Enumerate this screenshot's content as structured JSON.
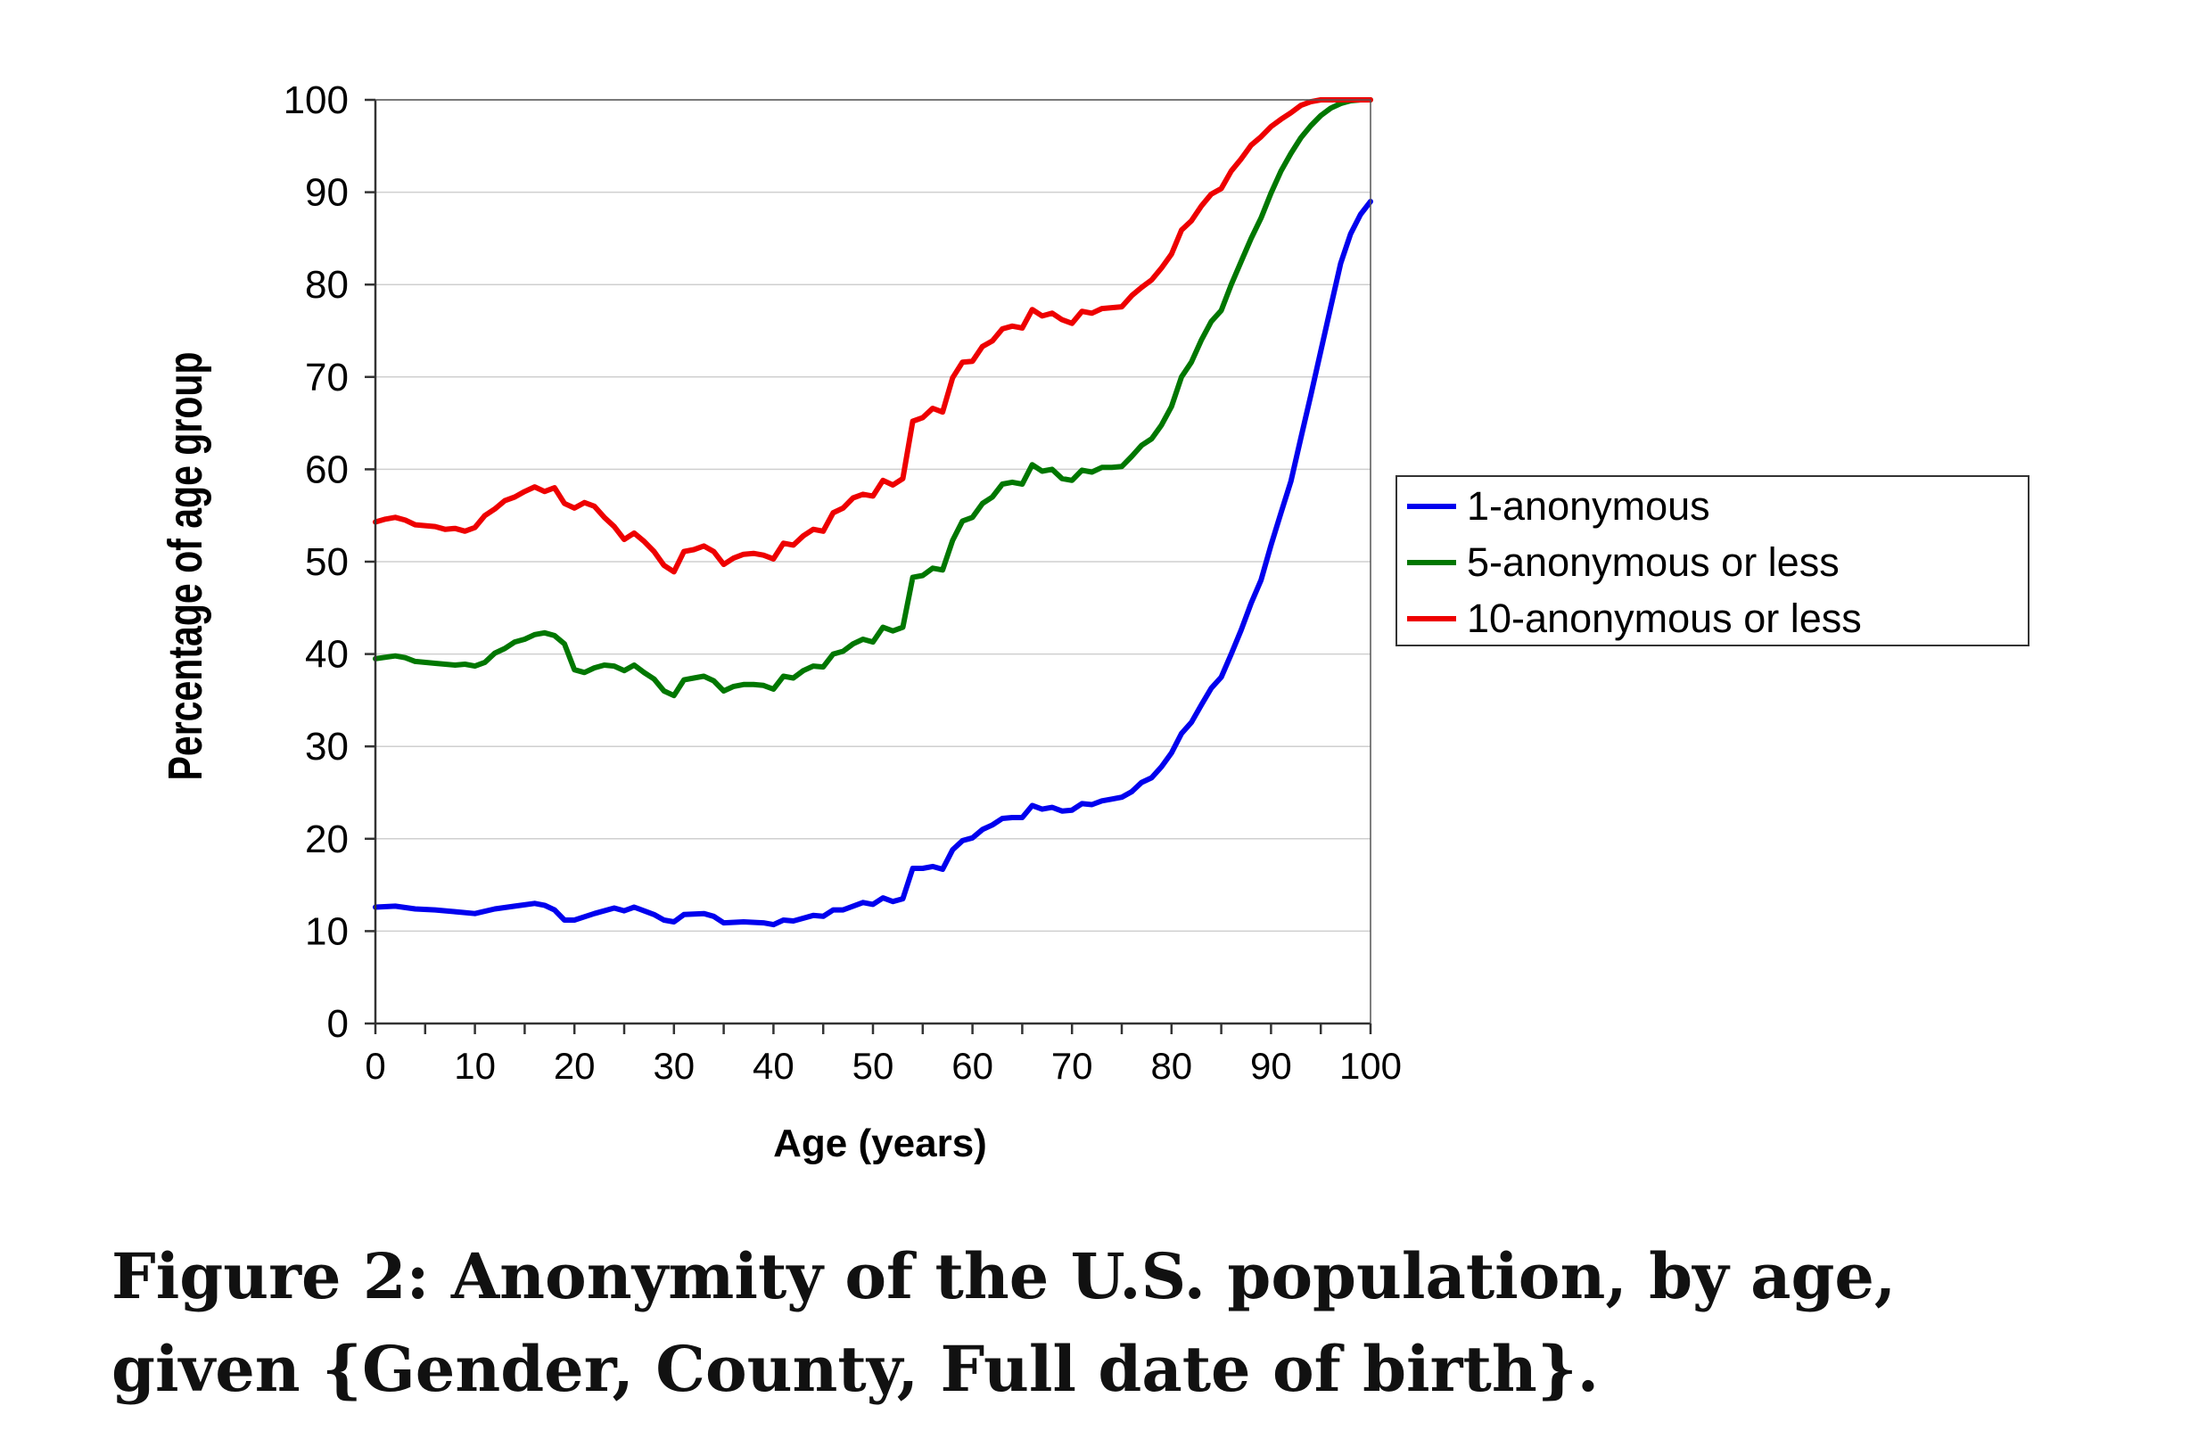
{
  "chart_data": {
    "type": "line",
    "xlabel": "Age (years)",
    "ylabel": "Percentage of age group",
    "xlim": [
      0,
      100
    ],
    "ylim": [
      0,
      100
    ],
    "x_ticks": [
      0,
      10,
      20,
      30,
      40,
      50,
      60,
      70,
      80,
      90,
      100
    ],
    "y_ticks": [
      0,
      10,
      20,
      30,
      40,
      50,
      60,
      70,
      80,
      90,
      100
    ],
    "grid": "horizontal",
    "legend_position": "right",
    "series": [
      {
        "name": "1-anonymous",
        "color": "#0000ee",
        "points": [
          [
            0,
            12.6
          ],
          [
            2,
            12.7
          ],
          [
            4,
            12.4
          ],
          [
            6,
            12.3
          ],
          [
            8,
            12.1
          ],
          [
            10,
            11.9
          ],
          [
            12,
            12.4
          ],
          [
            14,
            12.7
          ],
          [
            16,
            13.0
          ],
          [
            17,
            12.8
          ],
          [
            18,
            12.3
          ],
          [
            19,
            11.2
          ],
          [
            20,
            11.2
          ],
          [
            22,
            11.9
          ],
          [
            24,
            12.5
          ],
          [
            25,
            12.2
          ],
          [
            26,
            12.6
          ],
          [
            28,
            11.8
          ],
          [
            29,
            11.2
          ],
          [
            30,
            11.0
          ],
          [
            31,
            11.8
          ],
          [
            33,
            11.9
          ],
          [
            34,
            11.6
          ],
          [
            35,
            10.9
          ],
          [
            37,
            11.0
          ],
          [
            39,
            10.9
          ],
          [
            40,
            10.7
          ],
          [
            41,
            11.2
          ],
          [
            42,
            11.1
          ],
          [
            44,
            11.7
          ],
          [
            45,
            11.6
          ],
          [
            46,
            12.3
          ],
          [
            47,
            12.3
          ],
          [
            49,
            13.1
          ],
          [
            50,
            12.9
          ],
          [
            51,
            13.6
          ],
          [
            52,
            13.2
          ],
          [
            53,
            13.5
          ],
          [
            54,
            16.8
          ],
          [
            55,
            16.8
          ],
          [
            56,
            17.0
          ],
          [
            57,
            16.7
          ],
          [
            58,
            18.8
          ],
          [
            59,
            19.8
          ],
          [
            60,
            20.1
          ],
          [
            61,
            21.0
          ],
          [
            62,
            21.5
          ],
          [
            63,
            22.2
          ],
          [
            64,
            22.3
          ],
          [
            65,
            22.3
          ],
          [
            66,
            23.6
          ],
          [
            67,
            23.2
          ],
          [
            68,
            23.4
          ],
          [
            69,
            23.0
          ],
          [
            70,
            23.1
          ],
          [
            71,
            23.8
          ],
          [
            72,
            23.7
          ],
          [
            73,
            24.1
          ],
          [
            74,
            24.3
          ],
          [
            75,
            24.5
          ],
          [
            76,
            25.1
          ],
          [
            77,
            26.1
          ],
          [
            78,
            26.6
          ],
          [
            79,
            27.8
          ],
          [
            80,
            29.3
          ],
          [
            81,
            31.4
          ],
          [
            82,
            32.6
          ],
          [
            83,
            34.5
          ],
          [
            84,
            36.3
          ],
          [
            85,
            37.5
          ],
          [
            86,
            40.0
          ],
          [
            87,
            42.6
          ],
          [
            88,
            45.5
          ],
          [
            89,
            48.0
          ],
          [
            90,
            51.8
          ],
          [
            91,
            55.3
          ],
          [
            92,
            58.7
          ],
          [
            93,
            63.4
          ],
          [
            94,
            68.0
          ],
          [
            95,
            72.8
          ],
          [
            96,
            77.6
          ],
          [
            97,
            82.3
          ],
          [
            98,
            85.5
          ],
          [
            99,
            87.6
          ],
          [
            100,
            89.0
          ]
        ]
      },
      {
        "name": "5-anonymous or less",
        "color": "#007700",
        "points": [
          [
            0,
            39.5
          ],
          [
            2,
            39.8
          ],
          [
            3,
            39.6
          ],
          [
            4,
            39.2
          ],
          [
            6,
            39.0
          ],
          [
            8,
            38.8
          ],
          [
            9,
            38.9
          ],
          [
            10,
            38.7
          ],
          [
            11,
            39.1
          ],
          [
            12,
            40.1
          ],
          [
            13,
            40.6
          ],
          [
            14,
            41.3
          ],
          [
            15,
            41.6
          ],
          [
            16,
            42.1
          ],
          [
            17,
            42.3
          ],
          [
            18,
            42.0
          ],
          [
            19,
            41.1
          ],
          [
            20,
            38.3
          ],
          [
            21,
            38.0
          ],
          [
            22,
            38.5
          ],
          [
            23,
            38.8
          ],
          [
            24,
            38.7
          ],
          [
            25,
            38.2
          ],
          [
            26,
            38.8
          ],
          [
            27,
            38.0
          ],
          [
            28,
            37.3
          ],
          [
            29,
            36.0
          ],
          [
            30,
            35.5
          ],
          [
            31,
            37.2
          ],
          [
            32,
            37.4
          ],
          [
            33,
            37.6
          ],
          [
            34,
            37.1
          ],
          [
            35,
            36.0
          ],
          [
            36,
            36.5
          ],
          [
            37,
            36.7
          ],
          [
            38,
            36.7
          ],
          [
            39,
            36.6
          ],
          [
            40,
            36.2
          ],
          [
            41,
            37.6
          ],
          [
            42,
            37.4
          ],
          [
            43,
            38.2
          ],
          [
            44,
            38.7
          ],
          [
            45,
            38.6
          ],
          [
            46,
            40.0
          ],
          [
            47,
            40.3
          ],
          [
            48,
            41.1
          ],
          [
            49,
            41.6
          ],
          [
            50,
            41.3
          ],
          [
            51,
            42.9
          ],
          [
            52,
            42.5
          ],
          [
            53,
            42.9
          ],
          [
            54,
            48.3
          ],
          [
            55,
            48.5
          ],
          [
            56,
            49.3
          ],
          [
            57,
            49.1
          ],
          [
            58,
            52.3
          ],
          [
            59,
            54.4
          ],
          [
            60,
            54.8
          ],
          [
            61,
            56.3
          ],
          [
            62,
            57.0
          ],
          [
            63,
            58.4
          ],
          [
            64,
            58.6
          ],
          [
            65,
            58.4
          ],
          [
            66,
            60.5
          ],
          [
            67,
            59.8
          ],
          [
            68,
            60.0
          ],
          [
            69,
            59.0
          ],
          [
            70,
            58.8
          ],
          [
            71,
            59.9
          ],
          [
            72,
            59.7
          ],
          [
            73,
            60.2
          ],
          [
            74,
            60.2
          ],
          [
            75,
            60.3
          ],
          [
            76,
            61.4
          ],
          [
            77,
            62.6
          ],
          [
            78,
            63.3
          ],
          [
            79,
            64.8
          ],
          [
            80,
            66.8
          ],
          [
            81,
            70.0
          ],
          [
            82,
            71.6
          ],
          [
            83,
            74.0
          ],
          [
            84,
            76.0
          ],
          [
            85,
            77.2
          ],
          [
            86,
            80.0
          ],
          [
            87,
            82.5
          ],
          [
            88,
            85.0
          ],
          [
            89,
            87.2
          ],
          [
            90,
            89.9
          ],
          [
            91,
            92.3
          ],
          [
            92,
            94.2
          ],
          [
            93,
            95.9
          ],
          [
            94,
            97.2
          ],
          [
            95,
            98.3
          ],
          [
            96,
            99.1
          ],
          [
            97,
            99.6
          ],
          [
            98,
            99.9
          ],
          [
            99,
            100.0
          ],
          [
            100,
            100.0
          ]
        ]
      },
      {
        "name": "10-anonymous or less",
        "color": "#ee0000",
        "points": [
          [
            0,
            54.3
          ],
          [
            1,
            54.6
          ],
          [
            2,
            54.8
          ],
          [
            3,
            54.5
          ],
          [
            4,
            54.0
          ],
          [
            6,
            53.8
          ],
          [
            7,
            53.5
          ],
          [
            8,
            53.6
          ],
          [
            9,
            53.3
          ],
          [
            10,
            53.7
          ],
          [
            11,
            55.0
          ],
          [
            12,
            55.7
          ],
          [
            13,
            56.6
          ],
          [
            14,
            57.0
          ],
          [
            15,
            57.6
          ],
          [
            16,
            58.1
          ],
          [
            17,
            57.6
          ],
          [
            18,
            58.0
          ],
          [
            19,
            56.3
          ],
          [
            20,
            55.8
          ],
          [
            21,
            56.4
          ],
          [
            22,
            56.0
          ],
          [
            23,
            54.8
          ],
          [
            24,
            53.8
          ],
          [
            25,
            52.4
          ],
          [
            26,
            53.1
          ],
          [
            27,
            52.2
          ],
          [
            28,
            51.1
          ],
          [
            29,
            49.6
          ],
          [
            30,
            48.9
          ],
          [
            31,
            51.1
          ],
          [
            32,
            51.3
          ],
          [
            33,
            51.7
          ],
          [
            34,
            51.1
          ],
          [
            35,
            49.7
          ],
          [
            36,
            50.4
          ],
          [
            37,
            50.8
          ],
          [
            38,
            50.9
          ],
          [
            39,
            50.7
          ],
          [
            40,
            50.3
          ],
          [
            41,
            52.0
          ],
          [
            42,
            51.8
          ],
          [
            43,
            52.8
          ],
          [
            44,
            53.5
          ],
          [
            45,
            53.3
          ],
          [
            46,
            55.3
          ],
          [
            47,
            55.8
          ],
          [
            48,
            56.9
          ],
          [
            49,
            57.3
          ],
          [
            50,
            57.1
          ],
          [
            51,
            58.8
          ],
          [
            52,
            58.3
          ],
          [
            53,
            59.0
          ],
          [
            54,
            65.2
          ],
          [
            55,
            65.6
          ],
          [
            56,
            66.6
          ],
          [
            57,
            66.2
          ],
          [
            58,
            69.9
          ],
          [
            59,
            71.6
          ],
          [
            60,
            71.7
          ],
          [
            61,
            73.3
          ],
          [
            62,
            73.9
          ],
          [
            63,
            75.2
          ],
          [
            64,
            75.5
          ],
          [
            65,
            75.3
          ],
          [
            66,
            77.3
          ],
          [
            67,
            76.6
          ],
          [
            68,
            76.9
          ],
          [
            69,
            76.2
          ],
          [
            70,
            75.8
          ],
          [
            71,
            77.1
          ],
          [
            72,
            76.9
          ],
          [
            73,
            77.4
          ],
          [
            74,
            77.5
          ],
          [
            75,
            77.6
          ],
          [
            76,
            78.8
          ],
          [
            77,
            79.7
          ],
          [
            78,
            80.5
          ],
          [
            79,
            81.8
          ],
          [
            80,
            83.3
          ],
          [
            81,
            85.9
          ],
          [
            82,
            86.9
          ],
          [
            83,
            88.5
          ],
          [
            84,
            89.8
          ],
          [
            85,
            90.4
          ],
          [
            86,
            92.3
          ],
          [
            87,
            93.6
          ],
          [
            88,
            95.1
          ],
          [
            89,
            96.0
          ],
          [
            90,
            97.1
          ],
          [
            91,
            97.9
          ],
          [
            92,
            98.6
          ],
          [
            93,
            99.4
          ],
          [
            94,
            99.8
          ],
          [
            95,
            100.0
          ],
          [
            100,
            100.0
          ]
        ]
      }
    ]
  },
  "caption": {
    "line1": "Figure 2:  Anonymity of the U.S. population, by age,",
    "line2": "given {Gender, County, Full date of birth}."
  }
}
